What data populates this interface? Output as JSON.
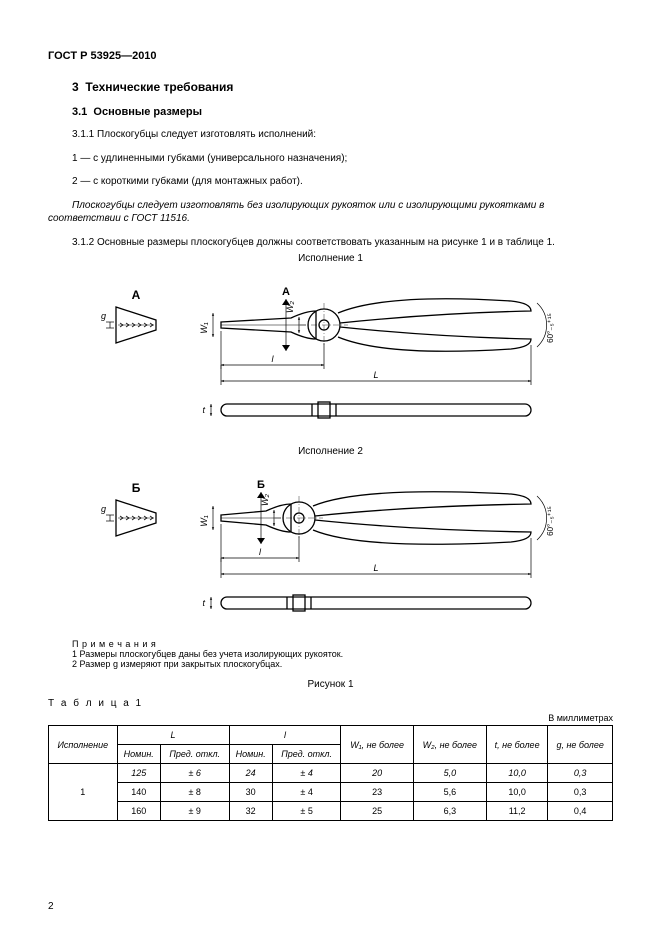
{
  "header": "ГОСТ Р 53925—2010",
  "section": {
    "num": "3",
    "title": "Технические требования"
  },
  "subsection": {
    "num": "3.1",
    "title": "Основные размеры"
  },
  "para": {
    "p1": "3.1.1  Плоскогубцы следует изготовлять исполнений:",
    "p2": "1 — с удлиненными губками (универсального назначения);",
    "p3": "2 — с короткими губками (для монтажных работ).",
    "p4": "Плоскогубцы следует изготовлять без изолирующих рукояток или с изолирующими рукоятками в соответствии с ГОСТ 11516.",
    "p5": "3.1.2  Основные размеры плоскогубцев должны соответствовать указанным на рисунке 1 и в таблице 1."
  },
  "fig": {
    "exec1": "Исполнение 1",
    "exec2": "Исполнение 2",
    "caption": "Рисунок 1",
    "labelA": "А",
    "labelB": "Б",
    "dimL": "L",
    "diml": "l",
    "dimW1": "W₁",
    "dimW2": "W₂",
    "dimt": "t",
    "dimg": "g",
    "dimAngle1": "60°₋₅⁺¹⁵",
    "dimAngle2": "60°₋₅⁺¹⁵"
  },
  "notes": {
    "heading": "П р и м е ч а н и я",
    "n1": "1  Размеры плоскогубцев даны без учета изолирующих рукояток.",
    "n2": "2  Размер g измеряют при закрытых плоскогубцах."
  },
  "table": {
    "label": "Т а б л и ц а  1",
    "units": "В миллиметрах",
    "head": {
      "exec": "Исполнение",
      "L": "L",
      "l": "l",
      "nomin": "Номин.",
      "pred": "Пред. откл.",
      "W1": "W₁, не более",
      "W2": "W₂, не более",
      "t": "t, не более",
      "g": "g, не более"
    },
    "rows": [
      {
        "exec": "1",
        "L_nom": "125",
        "L_tol": "± 6",
        "l_nom": "24",
        "l_tol": "± 4",
        "W1": "20",
        "W2": "5,0",
        "t": "10,0",
        "g": "0,3"
      },
      {
        "L_nom": "140",
        "L_tol": "± 8",
        "l_nom": "30",
        "l_tol": "± 4",
        "W1": "23",
        "W2": "5,6",
        "t": "10,0",
        "g": "0,3"
      },
      {
        "L_nom": "160",
        "L_tol": "± 9",
        "l_nom": "32",
        "l_tol": "± 5",
        "W1": "25",
        "W2": "6,3",
        "t": "11,2",
        "g": "0,4"
      }
    ]
  },
  "pagenum": "2",
  "style": {
    "stroke": "#000000",
    "strokeWidth": 1.3,
    "strokeWidthThin": 0.7,
    "fill": "none",
    "bg": "#ffffff",
    "fontLabel": 9
  }
}
